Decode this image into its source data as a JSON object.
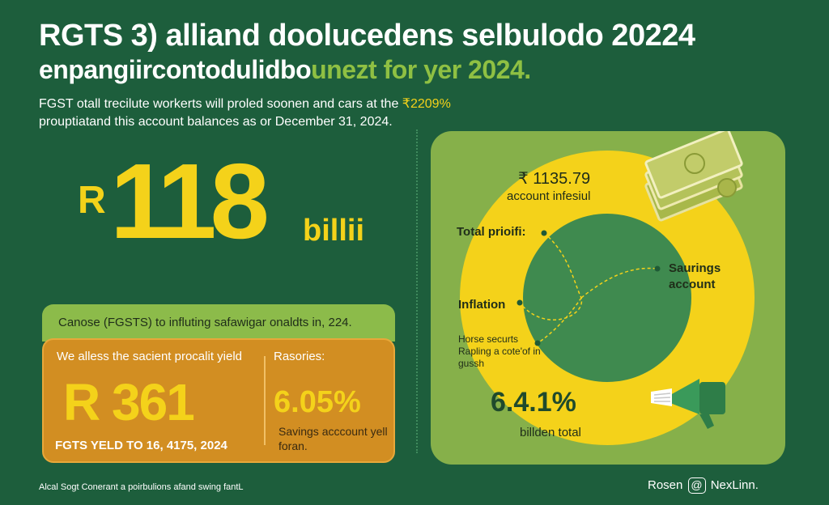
{
  "header": {
    "title": "RGTS 3) alliand doolucedens selbulodo 20224",
    "subtitle_a": "enpangiircontodulidbo",
    "subtitle_b": "unezt for yer 2024.",
    "intro_line1": "FGST otall trecilute workerts will proled soonen and cars at the ",
    "intro_highlight": "₹2209%",
    "intro_line2": "prouptiatand this account balances as or December 31, 2024."
  },
  "headline_figure": {
    "currency": "R",
    "value": "118",
    "unit": "billii"
  },
  "yield_card": {
    "banner": "Canose (FGSTS) to influting safawigar onaldts in, 224.",
    "yield_label": "We alless the sacient procalit yield",
    "yield_value": "R 361",
    "yield_footer": "FGTS YELD TO 16, 4175, 2024",
    "rates_label": "Rasories:",
    "rate_value": "6.05%",
    "rate_desc": "Savings acccount yell foran."
  },
  "donut_panel": {
    "top_value": "₹ 1135.79",
    "top_caption": "account infesiul",
    "label_total_profit": "Total prioifi:",
    "label_savings": "Saurings account",
    "label_inflation": "Inflation",
    "label_notes": "Horse securts Rapling a cote'of in gussh",
    "bottom_value": "6.4.1%",
    "bottom_caption": "billden total"
  },
  "footer": {
    "left": "Alcal Sogt Conerant a poirbulions afand swing fantL",
    "right_a": "Rosen",
    "right_at": "@",
    "right_b": "NexLinn."
  },
  "colors": {
    "background": "#1d5e3c",
    "accent_yellow": "#f4d21a",
    "accent_green": "#8cbb4a",
    "card_orange": "#d28e22",
    "donut_inner": "#3f8a4f"
  },
  "icons": [
    "money-stack-icon",
    "megaphone-icon"
  ]
}
